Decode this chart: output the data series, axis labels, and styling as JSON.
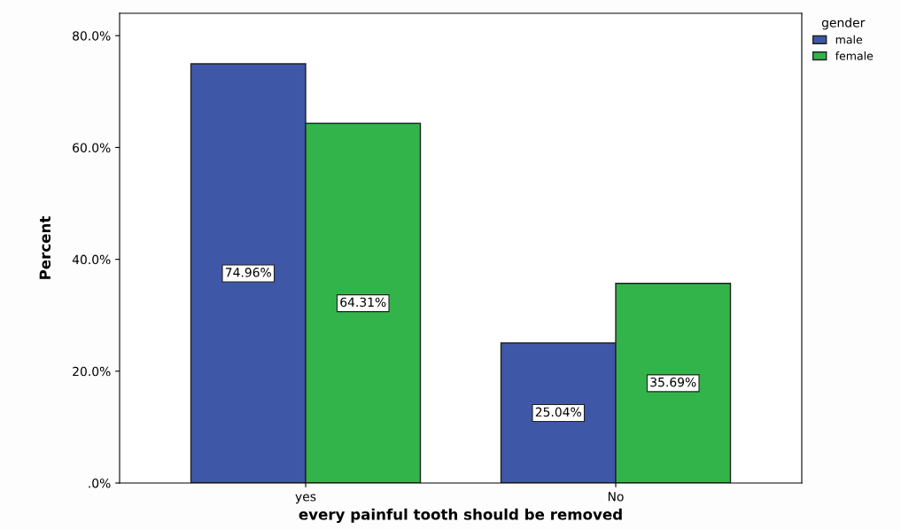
{
  "chart_data": {
    "type": "bar",
    "xlabel": "every painful tooth should be removed",
    "ylabel": "Percent",
    "legend_title": "gender",
    "categories": [
      "yes",
      "No"
    ],
    "series": [
      {
        "name": "male",
        "color": "#3e57a7",
        "values": [
          74.96,
          25.04
        ],
        "value_labels": [
          "74.96%",
          "25.04%"
        ]
      },
      {
        "name": "female",
        "color": "#33b44a",
        "values": [
          64.31,
          35.69
        ],
        "value_labels": [
          "64.31%",
          "35.69%"
        ]
      }
    ],
    "ylim": [
      0,
      84
    ],
    "yticks": [
      {
        "value": 0,
        "label": ".0%"
      },
      {
        "value": 20,
        "label": "20.0%"
      },
      {
        "value": 40,
        "label": "40.0%"
      },
      {
        "value": 60,
        "label": "60.0%"
      },
      {
        "value": 80,
        "label": "80.0%"
      }
    ],
    "legend": "top right",
    "grid": false
  }
}
